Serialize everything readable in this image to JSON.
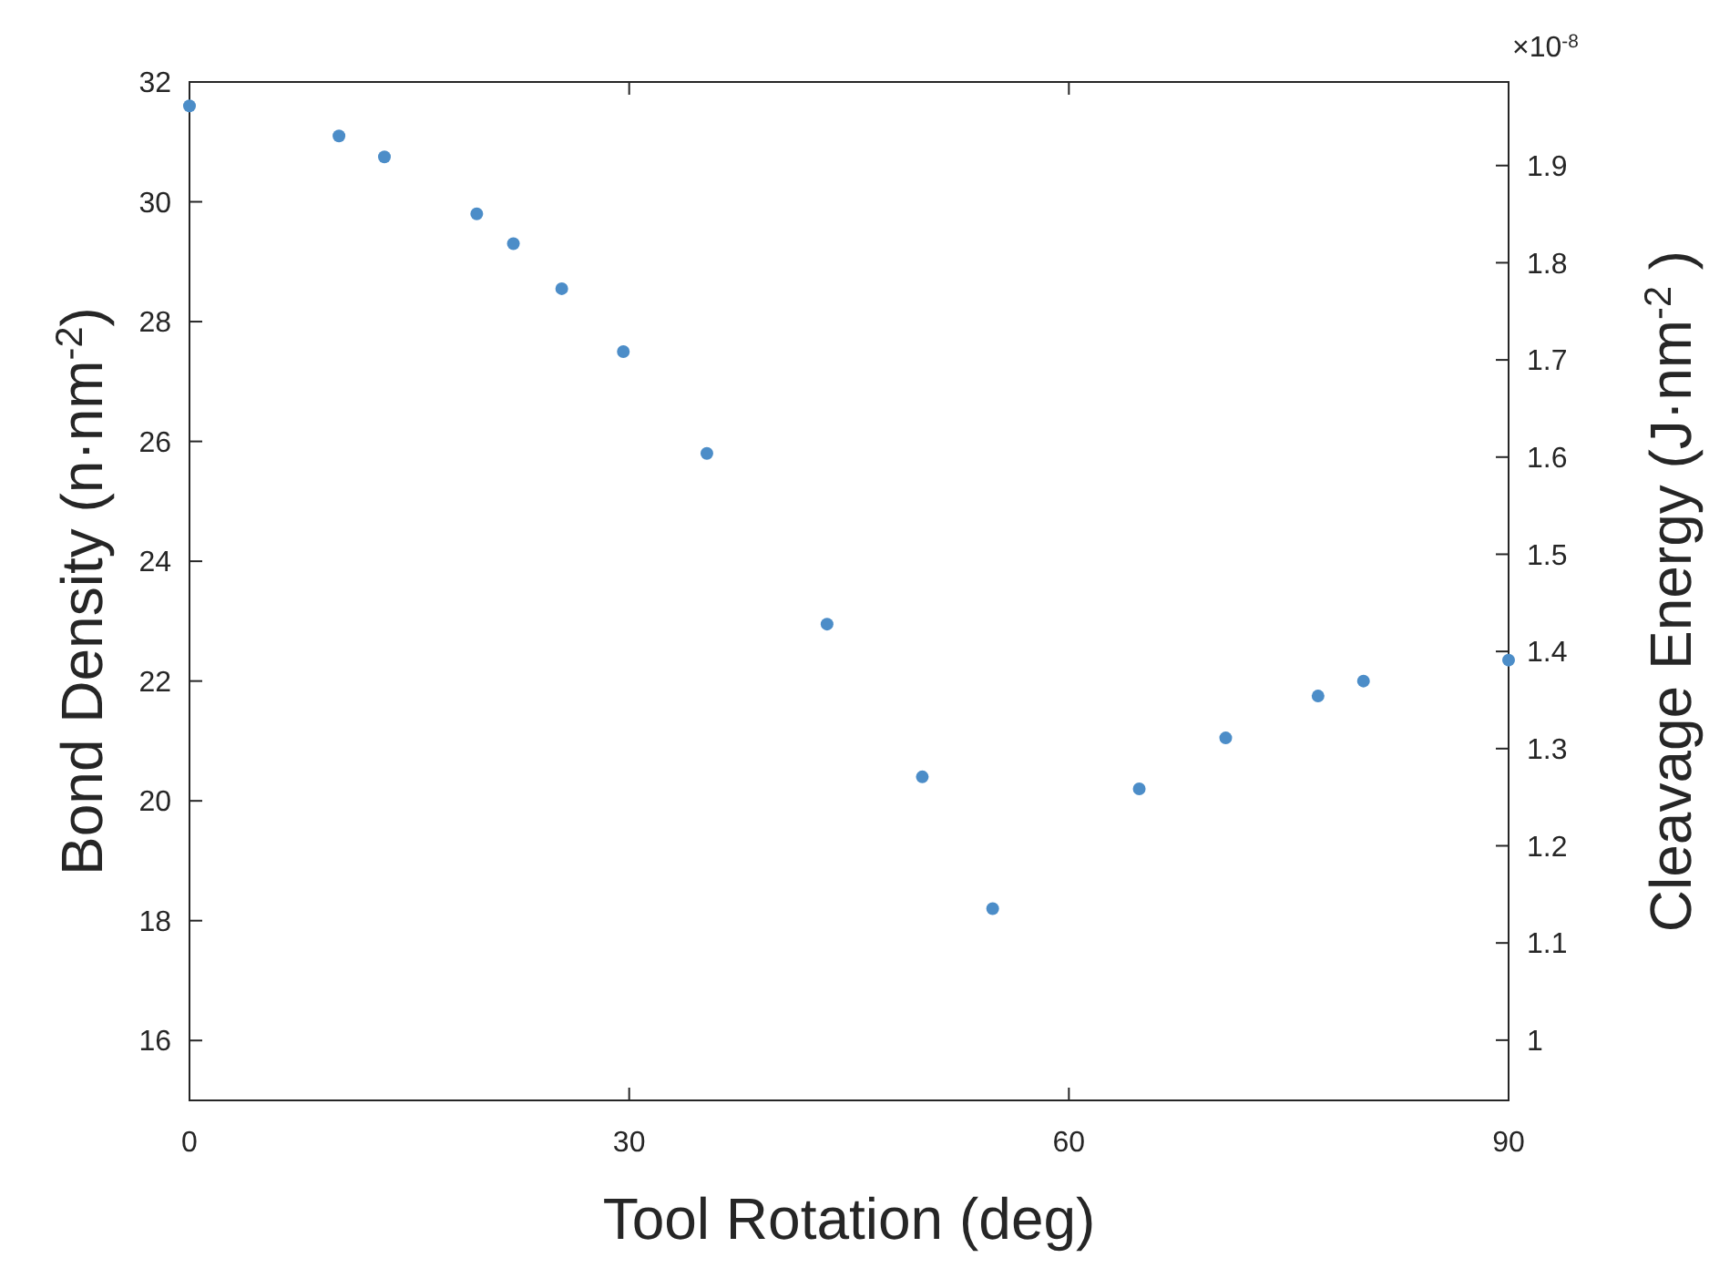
{
  "chart_data": {
    "type": "scatter",
    "xlabel": "Tool Rotation (deg)",
    "ylabel": "Bond Density (n·nm$^{-2}$)",
    "y2label": "Cleavage Energy (J·nm$^{-2}$ )",
    "x": [
      0,
      10.2,
      13.3,
      19.6,
      22.1,
      25.4,
      29.6,
      35.3,
      43.5,
      50.0,
      54.8,
      64.8,
      70.7,
      77.0,
      80.1,
      90
    ],
    "series": [
      {
        "color": "#4c8dc8",
        "values": [
          31.6,
          31.1,
          30.75,
          29.8,
          29.3,
          28.55,
          27.5,
          25.8,
          22.95,
          20.4,
          18.2,
          20.2,
          21.05,
          21.75,
          22.0,
          22.35
        ]
      }
    ],
    "xlim": [
      0,
      90
    ],
    "xticks": [
      0,
      30,
      60,
      90
    ],
    "ylim": [
      15,
      32
    ],
    "yticks": [
      16,
      18,
      20,
      22,
      24,
      26,
      28,
      30,
      32
    ],
    "y2lim": [
      0.938,
      1.986
    ],
    "y2ticks": [
      {
        "value": 1,
        "label": "1"
      },
      1.1,
      1.2,
      1.3,
      1.4,
      1.5,
      1.6,
      1.7,
      1.8,
      1.9
    ],
    "annotations": [
      "×10$^{-8}$"
    ],
    "marker": "circle",
    "grid": false
  }
}
